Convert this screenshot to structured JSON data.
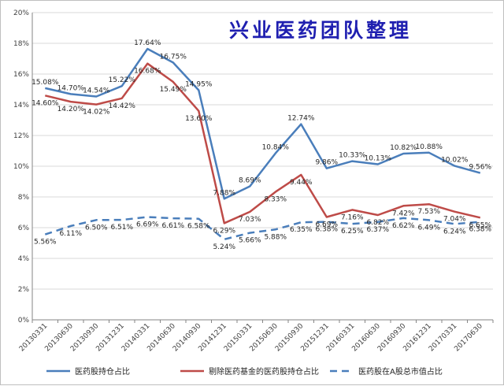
{
  "watermark": "兴业医药团队整理",
  "chart_data": {
    "type": "line",
    "categories": [
      "20130331",
      "20130630",
      "20130930",
      "20131231",
      "20140331",
      "20140630",
      "20140930",
      "20141231",
      "20150331",
      "20150630",
      "20150930",
      "20151231",
      "20160331",
      "20160630",
      "20160930",
      "20161231",
      "20170331",
      "20170630"
    ],
    "ylim": [
      0,
      20
    ],
    "yticks": [
      "0%",
      "2%",
      "4%",
      "6%",
      "8%",
      "10%",
      "12%",
      "14%",
      "16%",
      "18%",
      "20%"
    ],
    "grid": true,
    "legend_position": "bottom",
    "series": [
      {
        "name": "医药股持仓占比",
        "color": "#4a7ebb",
        "dash": "solid",
        "values": [
          15.08,
          14.7,
          14.54,
          15.22,
          17.64,
          16.75,
          14.95,
          7.88,
          8.69,
          10.84,
          12.74,
          9.86,
          10.33,
          10.13,
          10.82,
          10.88,
          10.02,
          9.56
        ],
        "labels": [
          "15.08%",
          "14.70%",
          "14.54%",
          "15.22%",
          "17.64%",
          "16.75%",
          "14.95%",
          "7.88%",
          "8.69%",
          "10.84%",
          "12.74%",
          "9.86%",
          "10.33%",
          "10.13%",
          "10.82%",
          "10.88%",
          "10.02%",
          "9.56%"
        ]
      },
      {
        "name": "剔除医药基金的医药股持仓占比",
        "color": "#be4b48",
        "dash": "solid",
        "values": [
          14.6,
          14.2,
          14.02,
          14.42,
          16.68,
          15.49,
          13.6,
          6.29,
          7.03,
          8.33,
          9.44,
          6.69,
          7.16,
          6.82,
          7.42,
          7.53,
          7.04,
          6.65
        ],
        "labels": [
          "14.60%",
          "14.20%",
          "14.02%",
          "14.42%",
          "16.68%",
          "15.49%",
          "13.60%",
          "6.29%",
          "7.03%",
          "8.33%",
          "9.44%",
          "6.69%",
          "7.16%",
          "6.82%",
          "7.42%",
          "7.53%",
          "7.04%",
          "6.65%"
        ]
      },
      {
        "name": "医药股在A股总市值占比",
        "color": "#4a7ebb",
        "dash": "dashed",
        "values": [
          5.56,
          6.11,
          6.5,
          6.51,
          6.69,
          6.61,
          6.58,
          5.24,
          5.66,
          5.88,
          6.35,
          6.38,
          6.25,
          6.37,
          6.62,
          6.49,
          6.24,
          6.38
        ],
        "labels": [
          "5.56%",
          "6.11%",
          "6.50%",
          "6.51%",
          "6.69%",
          "6.61%",
          "6.58%",
          "5.24%",
          "5.66%",
          "5.88%",
          "6.35%",
          "6.38%",
          "6.25%",
          "6.37%",
          "6.62%",
          "6.49%",
          "6.24%",
          "6.38%"
        ]
      }
    ]
  }
}
